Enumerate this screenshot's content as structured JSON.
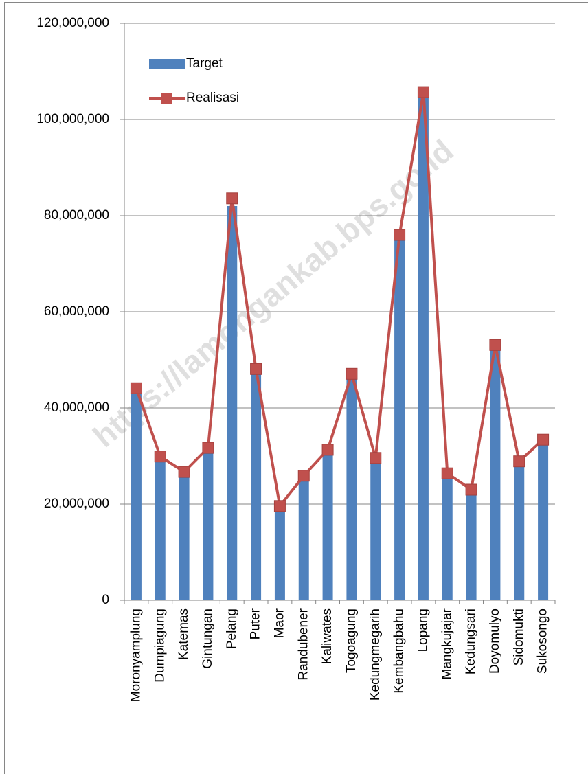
{
  "chart_data": {
    "type": "bar_line",
    "watermark": "https://lamongankab.bps.go.id",
    "categories": [
      "Moronyamplung",
      "Dumpiagung",
      "Katemas",
      "Gintungan",
      "Pelang",
      "Puter",
      "Maor",
      "Randubener",
      "Kaliwates",
      "Togoagung",
      "Kedungmegarih",
      "Kembangbahu",
      "Lopang",
      "Mangkujajar",
      "Kedungsari",
      "Doyomulyo",
      "Sidomukti",
      "Sukosongo"
    ],
    "series": [
      {
        "name": "Target",
        "type": "bar",
        "color": "#4f81bd",
        "values": [
          43000000,
          29000000,
          26000000,
          31000000,
          82000000,
          47500000,
          19000000,
          25000000,
          30500000,
          46500000,
          29000000,
          75000000,
          104500000,
          25800000,
          22500000,
          52000000,
          28300000,
          32800000
        ]
      },
      {
        "name": "Realisasi",
        "type": "line",
        "color": "#c0504d",
        "values": [
          44100000,
          29900000,
          26700000,
          31700000,
          83600000,
          48100000,
          19600000,
          25900000,
          31300000,
          47100000,
          29600000,
          76000000,
          105700000,
          26400000,
          23000000,
          53100000,
          28900000,
          33400000
        ]
      }
    ],
    "ylim": [
      0,
      120000000
    ],
    "yticks": [
      0,
      {
        "value": 20000000,
        "label": "20,000,000"
      },
      {
        "value": 40000000,
        "label": "40,000,000"
      },
      {
        "value": 60000000,
        "label": "60,000,000"
      },
      {
        "value": 80000000,
        "label": "80,000,000"
      },
      {
        "value": 100000000,
        "label": "100,000,000"
      },
      {
        "value": 120000000,
        "label": "120,000,000"
      }
    ],
    "grid": true,
    "legend": "top-left"
  }
}
